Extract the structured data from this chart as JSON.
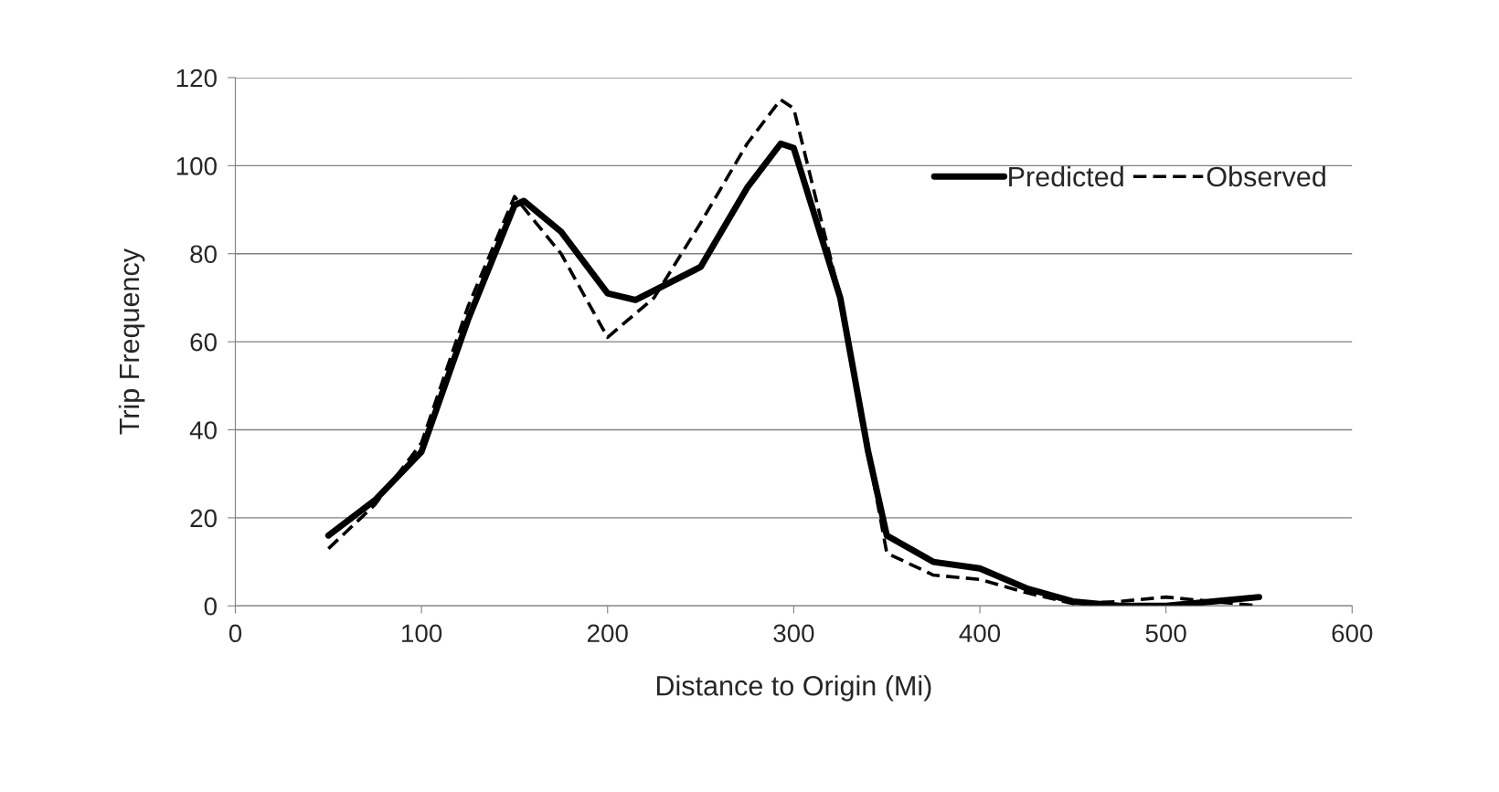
{
  "chart_data": {
    "type": "line",
    "xlabel": "Distance to Origin (Mi)",
    "ylabel": "Trip Frequency",
    "xlim": [
      0,
      600
    ],
    "xticks": [
      0,
      100,
      200,
      300,
      400,
      500,
      600
    ],
    "ylim": [
      0,
      120
    ],
    "yticks": [
      0,
      20,
      40,
      60,
      80,
      100,
      120
    ],
    "grid": "y",
    "legend": "top right",
    "series": [
      {
        "name": "Predicted",
        "color": "#000000",
        "line_style": "solid",
        "x": [
          50,
          75,
          100,
          125,
          150,
          155,
          175,
          200,
          215,
          250,
          275,
          293,
          300,
          325,
          340,
          350,
          375,
          400,
          425,
          450,
          475,
          500,
          525,
          550
        ],
        "values": [
          16,
          24,
          35,
          65,
          91,
          92,
          85,
          71,
          69.5,
          77,
          95,
          105,
          104,
          70,
          35,
          16,
          10,
          8.5,
          4,
          1,
          0,
          0,
          1,
          2
        ]
      },
      {
        "name": "Observed",
        "color": "#000000",
        "line_style": "dashed",
        "x": [
          50,
          75,
          100,
          125,
          150,
          175,
          200,
          225,
          250,
          275,
          293,
          300,
          325,
          340,
          350,
          375,
          400,
          425,
          450,
          475,
          500,
          525,
          550
        ],
        "values": [
          13,
          23,
          37,
          68,
          93,
          80,
          61,
          70,
          87,
          105,
          115,
          113,
          70,
          35,
          12,
          7,
          6,
          3,
          0.5,
          1,
          2,
          1,
          0
        ]
      }
    ]
  }
}
